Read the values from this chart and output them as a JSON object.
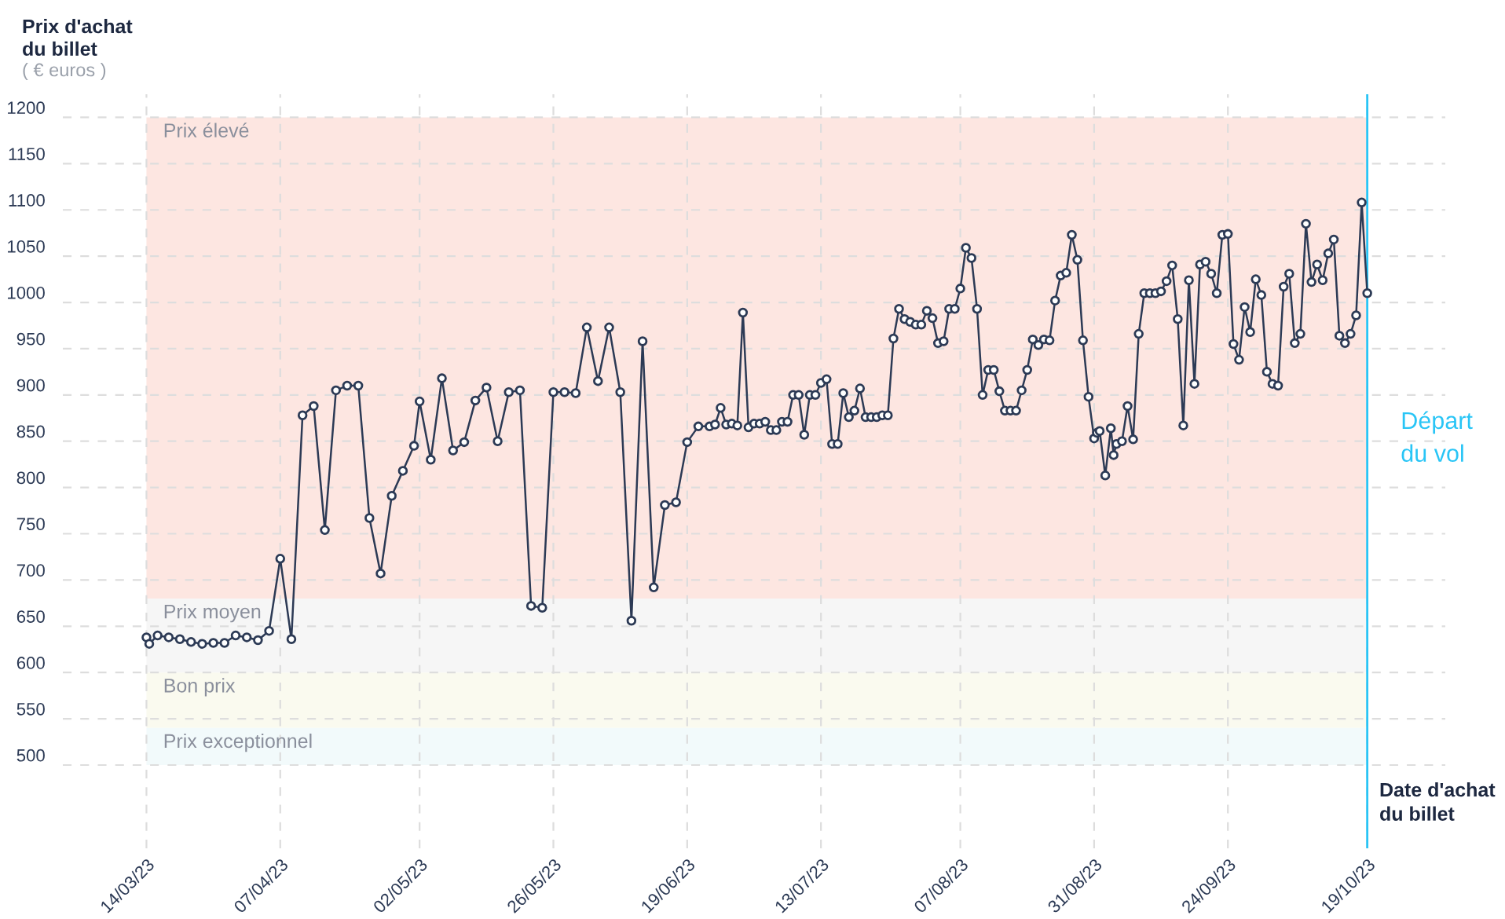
{
  "chart_data": {
    "type": "line",
    "xlabel": "Date d'achat\ndu billet",
    "ylabel": "Prix d'achat\ndu billet",
    "annotations": [
      "( € euros )"
    ],
    "x": [
      "2023-03-14",
      "2023-03-14T12:00",
      "2023-03-16",
      "2023-03-18",
      "2023-03-20",
      "2023-03-22",
      "2023-03-24",
      "2023-03-26",
      "2023-03-28",
      "2023-03-30",
      "2023-04-01",
      "2023-04-03",
      "2023-04-05",
      "2023-04-07",
      "2023-04-09",
      "2023-04-11",
      "2023-04-13",
      "2023-04-15",
      "2023-04-17",
      "2023-04-19",
      "2023-04-21",
      "2023-04-23",
      "2023-04-25",
      "2023-04-27",
      "2023-04-29",
      "2023-05-01",
      "2023-05-02",
      "2023-05-04",
      "2023-05-06",
      "2023-05-08",
      "2023-05-10",
      "2023-05-12",
      "2023-05-14",
      "2023-05-16",
      "2023-05-18",
      "2023-05-20",
      "2023-05-22",
      "2023-05-24",
      "2023-05-26",
      "2023-05-28",
      "2023-05-30",
      "2023-06-01",
      "2023-06-03",
      "2023-06-05",
      "2023-06-07",
      "2023-06-09",
      "2023-06-11",
      "2023-06-13",
      "2023-06-15",
      "2023-06-17",
      "2023-06-19",
      "2023-06-21",
      "2023-06-23",
      "2023-06-24",
      "2023-06-25",
      "2023-06-26",
      "2023-06-27",
      "2023-06-28",
      "2023-06-29",
      "2023-06-30",
      "2023-07-01",
      "2023-07-02",
      "2023-07-03",
      "2023-07-04",
      "2023-07-05",
      "2023-07-06",
      "2023-07-07",
      "2023-07-08",
      "2023-07-09",
      "2023-07-10",
      "2023-07-11",
      "2023-07-12",
      "2023-07-13",
      "2023-07-14",
      "2023-07-15",
      "2023-07-16",
      "2023-07-17",
      "2023-07-18",
      "2023-07-19",
      "2023-07-20",
      "2023-07-21",
      "2023-07-22",
      "2023-07-23",
      "2023-07-24",
      "2023-07-25",
      "2023-07-26",
      "2023-07-27",
      "2023-07-28",
      "2023-07-29",
      "2023-07-30",
      "2023-07-31",
      "2023-08-01",
      "2023-08-02",
      "2023-08-03",
      "2023-08-04",
      "2023-08-05",
      "2023-08-06",
      "2023-08-07",
      "2023-08-08",
      "2023-08-09",
      "2023-08-10",
      "2023-08-11",
      "2023-08-12",
      "2023-08-13",
      "2023-08-14",
      "2023-08-15",
      "2023-08-16",
      "2023-08-17",
      "2023-08-18",
      "2023-08-19",
      "2023-08-20",
      "2023-08-21",
      "2023-08-22",
      "2023-08-23",
      "2023-08-24",
      "2023-08-25",
      "2023-08-26",
      "2023-08-27",
      "2023-08-28",
      "2023-08-29",
      "2023-08-30",
      "2023-08-31",
      "2023-08-31T12:00",
      "2023-09-01",
      "2023-09-02",
      "2023-09-03",
      "2023-09-03T12:00",
      "2023-09-04",
      "2023-09-05",
      "2023-09-06",
      "2023-09-07",
      "2023-09-08",
      "2023-09-09",
      "2023-09-10",
      "2023-09-11",
      "2023-09-12",
      "2023-09-13",
      "2023-09-14",
      "2023-09-15",
      "2023-09-16",
      "2023-09-17",
      "2023-09-18",
      "2023-09-19",
      "2023-09-20",
      "2023-09-21",
      "2023-09-22",
      "2023-09-23",
      "2023-09-24",
      "2023-09-25",
      "2023-09-26",
      "2023-09-27",
      "2023-09-28",
      "2023-09-29",
      "2023-09-30",
      "2023-10-01",
      "2023-10-02",
      "2023-10-03",
      "2023-10-04",
      "2023-10-05",
      "2023-10-06",
      "2023-10-07",
      "2023-10-08",
      "2023-10-09",
      "2023-10-10",
      "2023-10-11",
      "2023-10-12",
      "2023-10-13",
      "2023-10-14",
      "2023-10-15",
      "2023-10-16",
      "2023-10-17",
      "2023-10-18",
      "2023-10-19"
    ],
    "series": [
      {
        "color": "#2c3a55",
        "values": [
          638,
          631,
          640,
          638,
          636,
          633,
          631,
          632,
          632,
          640,
          638,
          635,
          645,
          723,
          636,
          878,
          888,
          754,
          905,
          910,
          910,
          767,
          707,
          791,
          818,
          845,
          893,
          830,
          918,
          840,
          849,
          894,
          908,
          850,
          903,
          905,
          672,
          670,
          903,
          903,
          902,
          973,
          915,
          973,
          903,
          656,
          958,
          692,
          781,
          784,
          849,
          866,
          866,
          868,
          886,
          868,
          869,
          867,
          989,
          865,
          869,
          869,
          871,
          862,
          862,
          871,
          871,
          900,
          900,
          857,
          900,
          900,
          913,
          917,
          847,
          847,
          902,
          876,
          883,
          907,
          876,
          876,
          876,
          878,
          878,
          961,
          993,
          982,
          979,
          976,
          976,
          991,
          983,
          956,
          958,
          993,
          993,
          1015,
          1059,
          1048,
          993,
          900,
          927,
          927,
          904,
          883,
          883,
          883,
          905,
          927,
          960,
          954,
          960,
          959,
          1002,
          1029,
          1032,
          1073,
          1046,
          959,
          898,
          853,
          859,
          861,
          813,
          864,
          835,
          847,
          850,
          888,
          852,
          966,
          1010,
          1010,
          1010,
          1012,
          1023,
          1040,
          982,
          867,
          1024,
          912,
          1041,
          1044,
          1031,
          1010,
          1073,
          1074,
          955,
          938,
          995,
          968,
          1025,
          1008,
          925,
          912,
          910,
          1017,
          1031,
          956,
          966,
          1085,
          1022,
          1041,
          1024,
          1053,
          1068,
          964,
          956,
          966,
          986,
          1108,
          1010
        ]
      }
    ],
    "marker": "circle",
    "line_style": "solid",
    "xlim": [
      "2023-02-27",
      "2023-11-02"
    ],
    "xticks": [
      {
        "value": "2023-03-14",
        "label": "14/03/23"
      },
      {
        "value": "2023-04-07",
        "label": "07/04/23"
      },
      {
        "value": "2023-05-02",
        "label": "02/05/23"
      },
      {
        "value": "2023-05-26",
        "label": "26/05/23"
      },
      {
        "value": "2023-06-19",
        "label": "19/06/23"
      },
      {
        "value": "2023-07-13",
        "label": "13/07/23"
      },
      {
        "value": "2023-08-07",
        "label": "07/08/23"
      },
      {
        "value": "2023-08-31",
        "label": "31/08/23"
      },
      {
        "value": "2023-09-24",
        "label": "24/09/23"
      },
      {
        "value": "2023-10-19",
        "label": "19/10/23"
      }
    ],
    "ylim": [
      410,
      1225
    ],
    "yticks": [
      500,
      550,
      600,
      650,
      700,
      750,
      800,
      850,
      900,
      950,
      1000,
      1050,
      1100,
      1150,
      1200
    ],
    "grid": true,
    "bands": [
      {
        "axis": "y",
        "from": 680,
        "to": 1200,
        "label": "Prix élevé",
        "color": "#fde6e1"
      },
      {
        "axis": "y",
        "from": 600,
        "to": 680,
        "label": "Prix moyen",
        "color": "#f6f6f6"
      },
      {
        "axis": "y",
        "from": 540,
        "to": 600,
        "label": "Bon prix",
        "color": "#fafaef"
      },
      {
        "axis": "y",
        "from": 500,
        "to": 540,
        "label": "Prix exceptionnel",
        "color": "#f2fafb"
      }
    ],
    "ref_lines": [
      {
        "axis": "x",
        "value": "2023-10-19",
        "label": "Départ\ndu vol",
        "color": "#29c5f6",
        "line_style": "solid"
      }
    ]
  }
}
